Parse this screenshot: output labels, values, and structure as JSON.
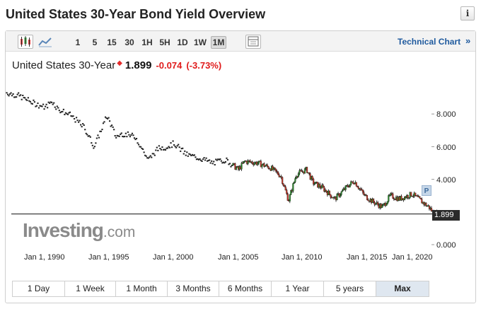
{
  "page_title": "United States 30-Year Bond Yield Overview",
  "info_button": "i",
  "toolbar": {
    "intervals": [
      "1",
      "5",
      "15",
      "30",
      "1H",
      "5H",
      "1D",
      "1W",
      "1M"
    ],
    "active_interval": "1M",
    "technical_chart_label": "Technical Chart",
    "technical_chart_arrow": "»"
  },
  "quote": {
    "name": "United States 30-Year",
    "last": "1.899",
    "change": "-0.074",
    "change_pct": "(-3.73%)"
  },
  "chart_data": {
    "type": "candlestick",
    "x_tick_labels": [
      "Jan 1, 1990",
      "Jan 1, 1995",
      "Jan 1, 2000",
      "Jan 1, 2005",
      "Jan 1, 2010",
      "Jan 1, 2015",
      "Jan 1, 2020"
    ],
    "y_tick_labels": [
      "8.000",
      "6.000",
      "4.000",
      "0.000"
    ],
    "ylim": [
      0,
      9.8
    ],
    "last_value": 1.899,
    "last_value_label": "1.899",
    "marker_label": "P",
    "series": [
      {
        "x": [
          1987.0,
          1988.0,
          1989.0,
          1990.0,
          1990.5,
          1991.0,
          1992.0,
          1993.0,
          1993.8,
          1994.8,
          1995.5,
          1996.0,
          1997.0,
          1998.0,
          1998.8,
          1999.5,
          2000.0,
          2001.0,
          2002.0,
          2003.0,
          2004.0,
          2005.0,
          2005.5,
          2006.5,
          2007.5,
          2008.3,
          2008.9,
          2009.5,
          2010.3,
          2010.8,
          2011.5,
          2012.5,
          2013.5,
          2014.0,
          2014.8,
          2015.5,
          2016.2,
          2016.8,
          2017.5,
          2018.5,
          2019.3,
          2019.8,
          2020.2,
          2020.5
        ],
        "values": [
          9.3,
          9.1,
          8.7,
          8.4,
          8.8,
          8.3,
          7.9,
          7.2,
          6.0,
          7.9,
          6.6,
          6.8,
          6.6,
          5.2,
          5.9,
          6.0,
          6.2,
          5.5,
          5.3,
          5.0,
          5.2,
          4.6,
          5.1,
          5.0,
          4.7,
          4.2,
          2.7,
          4.3,
          4.6,
          3.8,
          3.5,
          2.8,
          3.6,
          3.9,
          3.0,
          2.6,
          2.3,
          3.0,
          2.8,
          3.1,
          2.6,
          2.3,
          1.9,
          1.899
        ]
      }
    ]
  },
  "logo": {
    "main": "Investing",
    "suffix": ".com"
  },
  "ranges": [
    "1 Day",
    "1 Week",
    "1 Month",
    "3 Months",
    "6 Months",
    "1 Year",
    "5 years",
    "Max"
  ],
  "active_range": "Max"
}
